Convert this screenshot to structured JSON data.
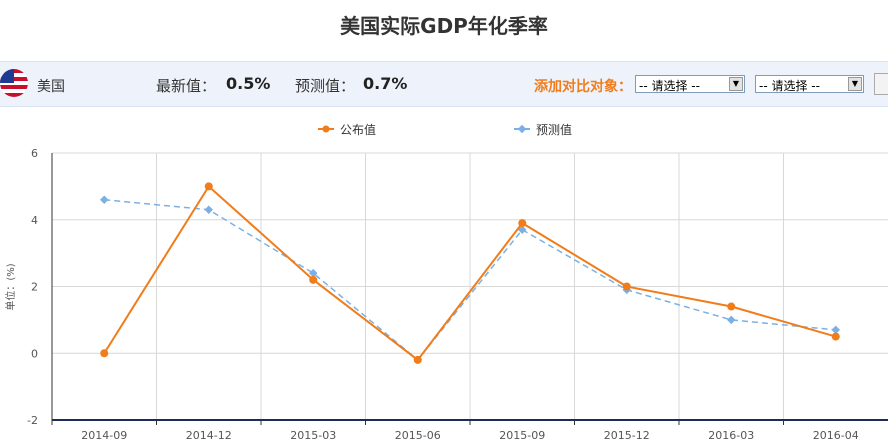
{
  "page": {
    "title": "美国实际GDP年化季率"
  },
  "info": {
    "country": "美国",
    "latest_label": "最新值：",
    "latest_value": "0.5%",
    "forecast_label": "预测值：",
    "forecast_value": "0.7%",
    "compare_label": "添加对比对象：",
    "select1": "-- 请选择 --",
    "select2": "-- 请选择 --"
  },
  "chart_data": {
    "type": "line",
    "categories": [
      "2014-09",
      "2014-12",
      "2015-03",
      "2015-06",
      "2015-09",
      "2015-12",
      "2016-03",
      "2016-04"
    ],
    "series": [
      {
        "name": "公布值",
        "values": [
          0,
          5.0,
          2.2,
          -0.2,
          3.9,
          2.0,
          1.4,
          0.5
        ],
        "color": "#f07c1a",
        "style": "solid"
      },
      {
        "name": "预测值",
        "values": [
          4.6,
          4.3,
          2.4,
          -0.2,
          3.7,
          1.9,
          1.0,
          0.7
        ],
        "color": "#7cb0e4",
        "style": "dashed"
      }
    ],
    "ylabel": "单位：(%)",
    "ylim": [
      -2,
      6
    ],
    "yticks": [
      "-2",
      "0",
      "2",
      "4",
      "6"
    ],
    "grid": true,
    "legend_position": "top-center"
  }
}
